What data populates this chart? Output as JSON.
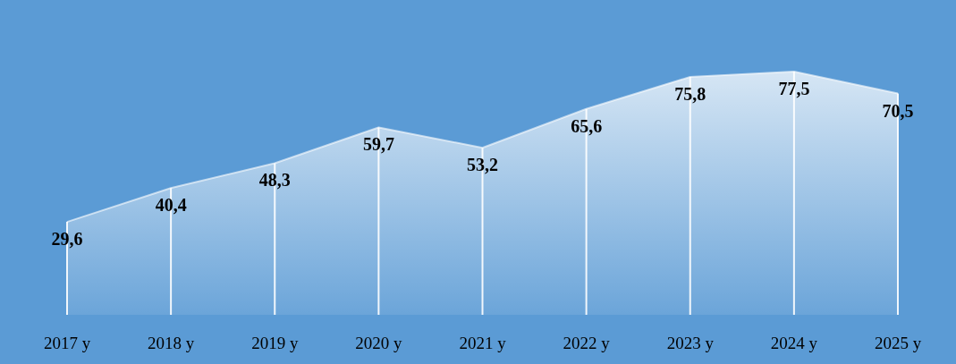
{
  "chart_data": {
    "type": "area",
    "categories": [
      "2017 y",
      "2018 y",
      "2019 y",
      "2020 y",
      "2021 y",
      "2022 y",
      "2023 y",
      "2024 y",
      "2025 y"
    ],
    "values": [
      29.6,
      40.4,
      48.3,
      59.7,
      53.2,
      65.6,
      75.8,
      77.5,
      70.5
    ],
    "value_labels": [
      "29,6",
      "40,4",
      "48,3",
      "59,7",
      "53,2",
      "65,6",
      "75,8",
      "77,5",
      "70,5"
    ],
    "color": "#ffffff",
    "grid": "x"
  }
}
